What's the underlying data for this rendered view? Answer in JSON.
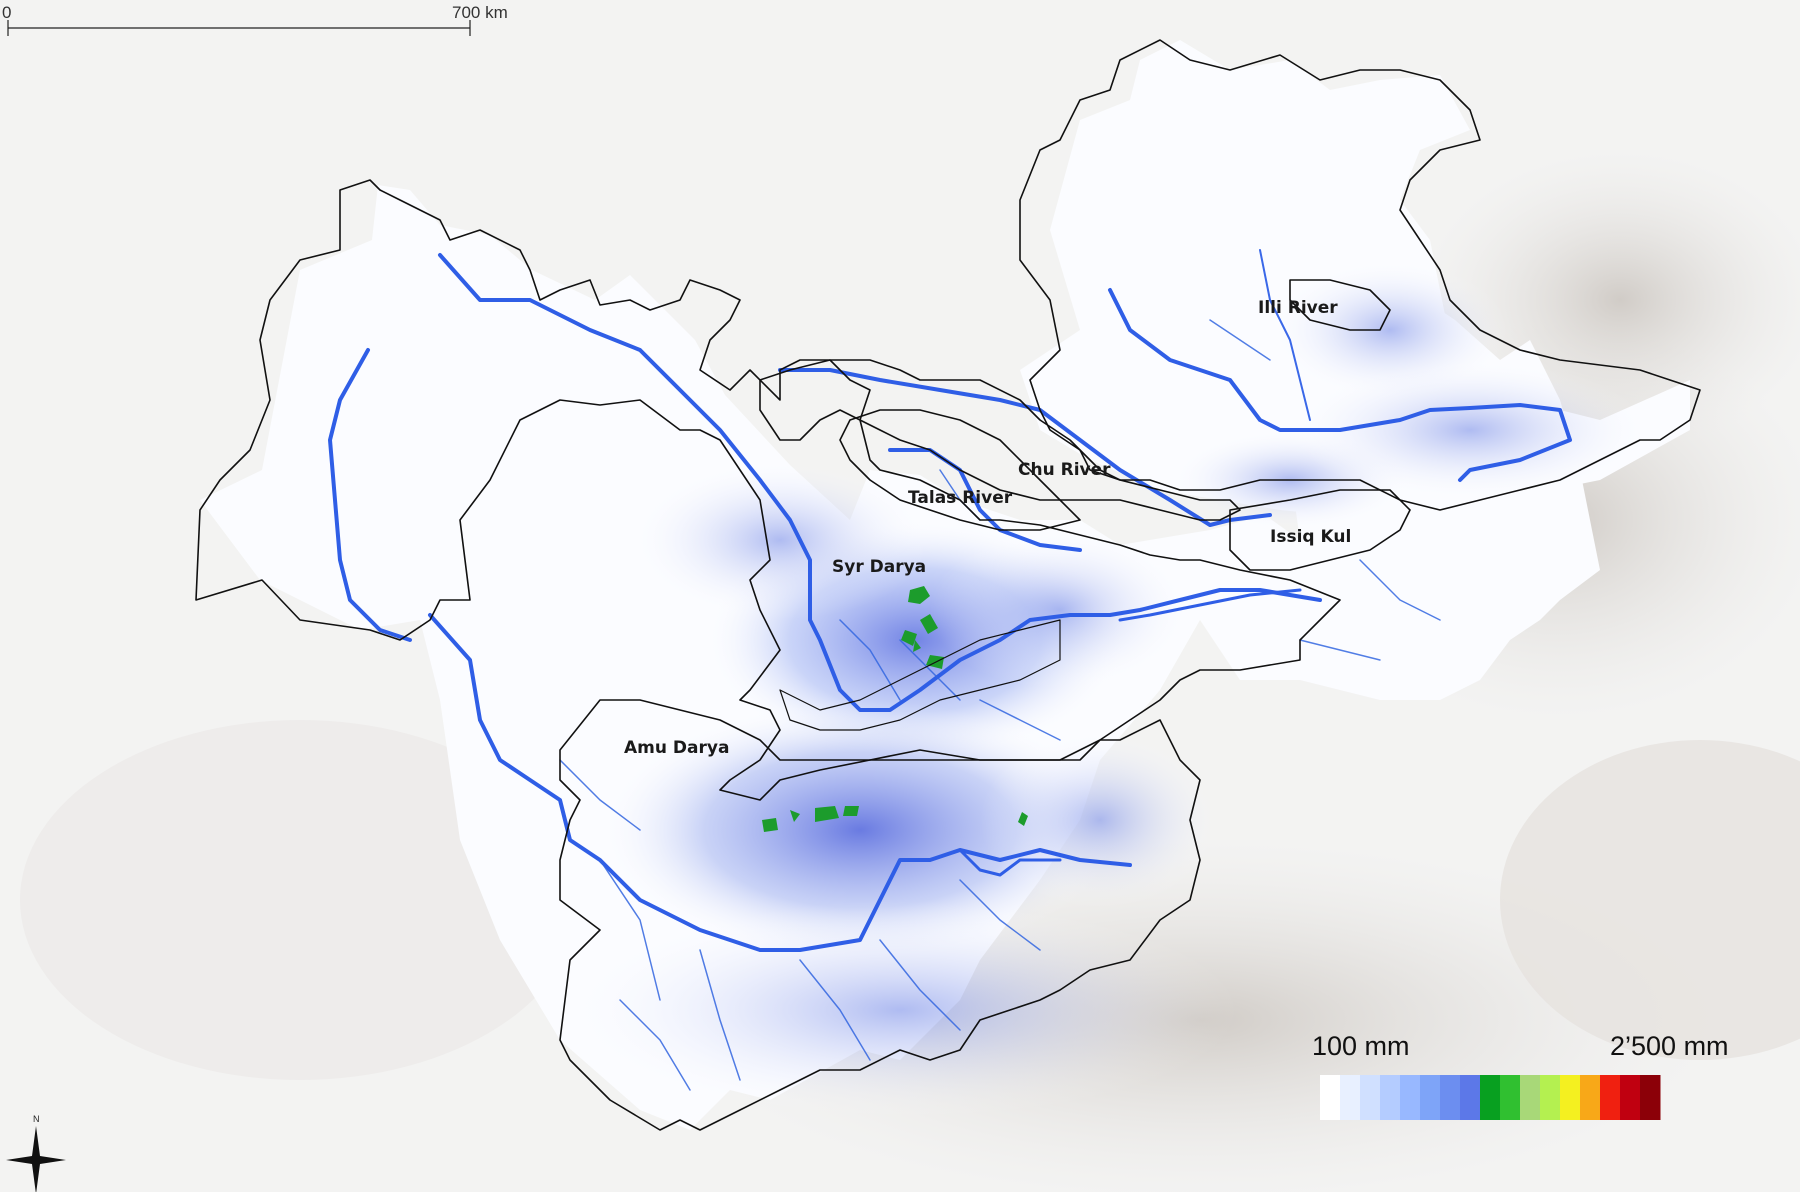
{
  "scale_bar": {
    "start_label": "0",
    "end_label": "700 km"
  },
  "basins": [
    {
      "id": "illi",
      "label": "Illi River"
    },
    {
      "id": "chu",
      "label": "Chu River"
    },
    {
      "id": "talas",
      "label": "Talas River"
    },
    {
      "id": "issiq",
      "label": "Issiq Kul"
    },
    {
      "id": "syr",
      "label": "Syr Darya"
    },
    {
      "id": "amu",
      "label": "Amu Darya"
    }
  ],
  "legend": {
    "min_label": "100 mm",
    "max_label": "2’500 mm",
    "colors": [
      "#ffffff",
      "#e8f0ff",
      "#d0e0ff",
      "#b4ccff",
      "#98b8ff",
      "#7ea4f8",
      "#6c8ef0",
      "#5c78e8",
      "#08a020",
      "#30c030",
      "#a8d878",
      "#b4f050",
      "#f4f020",
      "#f8a818",
      "#f02010",
      "#c00010",
      "#8c0008"
    ]
  },
  "north_arrow": {
    "label": "N"
  }
}
